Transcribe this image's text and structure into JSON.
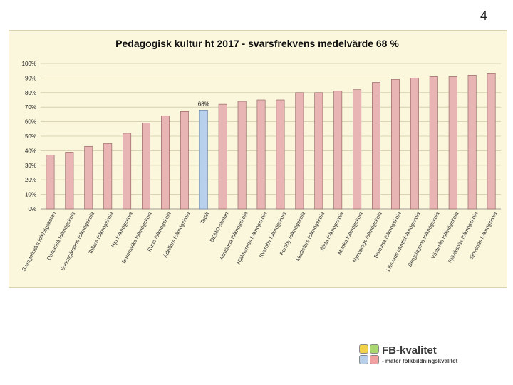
{
  "page_number": "4",
  "chart_data": {
    "type": "bar",
    "title": "Pedagogisk kultur ht 2017 - svarsfrekvens medelvärde 68 %",
    "categories": [
      "Sverigefinska folkhögskolan",
      "Dalkarlså folkhögskola",
      "Sundsgårdens folkhögskola",
      "Tollare folkhögskola",
      "Hjo folkhögskola",
      "Brunnsviks folkhögskola",
      "Runö folkhögskola",
      "Ädelfors folkhögskola",
      "Totalt",
      "DEMO-skolan",
      "Allmänna folkhögskola",
      "Hjälmareds folkhögskola",
      "Kvarnby folkhögskola",
      "Fornby folkhögskola",
      "Medlefors folkhögskola",
      "Ålsta folkhögskola",
      "Munka folkhögskola",
      "Nyköpings folkhögskola",
      "Bromma folkhögskola",
      "Lillsveds idrottsfolkhögskola",
      "Bergslagens folkhögskola",
      "Västerås folkhögskola",
      "Sjöviksnäs folkhögskola",
      "Sjövsnäs folkhögskola"
    ],
    "values": [
      37,
      39,
      43,
      45,
      52,
      59,
      64,
      67,
      68,
      72,
      74,
      75,
      75,
      80,
      80,
      81,
      82,
      87,
      89,
      90,
      91,
      91,
      92,
      93
    ],
    "highlight_index": 8,
    "highlight_label": "68%",
    "ylim": [
      0,
      100
    ],
    "yticks": [
      "0%",
      "10%",
      "20%",
      "30%",
      "40%",
      "50%",
      "60%",
      "70%",
      "80%",
      "90%",
      "100%"
    ],
    "grid": true,
    "colors": {
      "bar": "#e8b4b4",
      "bar_stroke": "#8a5a5a",
      "highlight": "#b8d0ec",
      "highlight_stroke": "#5a7a9a",
      "grid": "#cfc9a8"
    }
  },
  "logo": {
    "title": "FB-kvalitet",
    "subtitle": "- mäter folkbildningskvalitet",
    "colors": [
      "#f2d24a",
      "#a8d86e",
      "#b8d0ec",
      "#f0a0a0"
    ]
  }
}
